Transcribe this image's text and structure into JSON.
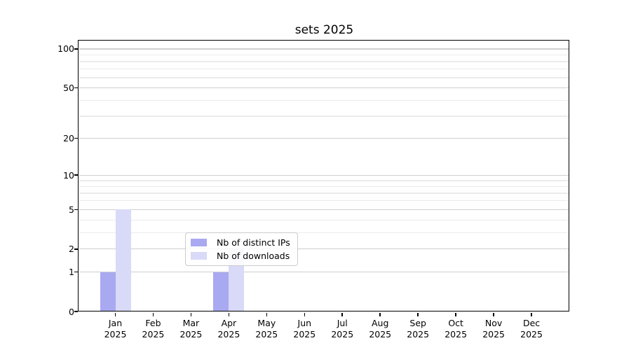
{
  "chart_data": {
    "type": "bar",
    "title": "sets 2025",
    "categories": [
      "Jan",
      "Feb",
      "Mar",
      "Apr",
      "May",
      "Jun",
      "Jul",
      "Aug",
      "Sep",
      "Oct",
      "Nov",
      "Dec"
    ],
    "year_label": "2025",
    "series": [
      {
        "name": "Nb of distinct IPs",
        "color": "#a9a9f1",
        "values": [
          1,
          0,
          0,
          1,
          0,
          0,
          0,
          0,
          0,
          0,
          0,
          0
        ]
      },
      {
        "name": "Nb of downloads",
        "color": "#d9d9f8",
        "values": [
          5,
          0,
          0,
          2,
          0,
          0,
          0,
          0,
          0,
          0,
          0,
          0
        ]
      }
    ],
    "y_ticks": [
      0,
      1,
      2,
      5,
      10,
      20,
      50,
      100
    ],
    "y_minor_ticks": [
      3,
      4,
      6,
      7,
      8,
      9,
      30,
      40,
      60,
      70,
      80,
      90
    ],
    "scale": "log1p",
    "ylim": [
      0,
      114.6
    ],
    "grid": true,
    "grid_major_color": "#cfcfcf",
    "grid_minor_color": "#ebebeb",
    "legend_position": "lower center"
  }
}
